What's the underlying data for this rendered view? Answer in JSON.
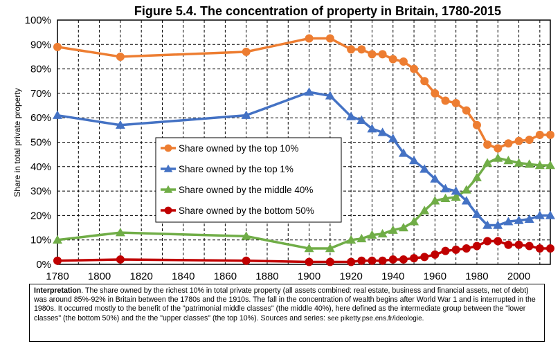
{
  "chart_data": {
    "type": "line",
    "title": "Figure 5.4. The concentration of property in Britain, 1780-2015",
    "xlabel": "",
    "ylabel": "Share in total private property",
    "xlim": [
      1780,
      2015
    ],
    "ylim": [
      0,
      100
    ],
    "x_ticks": [
      1780,
      1800,
      1820,
      1840,
      1860,
      1880,
      1900,
      1920,
      1940,
      1960,
      1980,
      2000
    ],
    "x_tick_labels": [
      "1780",
      "1800",
      "1820",
      "1840",
      "1860",
      "1880",
      "1900",
      "1920",
      "1940",
      "1960",
      "1980",
      "2000"
    ],
    "y_ticks": [
      0,
      10,
      20,
      30,
      40,
      50,
      60,
      70,
      80,
      90,
      100
    ],
    "y_tick_labels": [
      "0%",
      "10%",
      "20%",
      "30%",
      "40%",
      "50%",
      "60%",
      "70%",
      "80%",
      "90%",
      "100%"
    ],
    "grid": "dashed",
    "legend_position": "center-left",
    "series": [
      {
        "name": "Share owned by the top 10%",
        "color": "#ed7d31",
        "marker": "circle",
        "points": [
          [
            1780,
            89
          ],
          [
            1810,
            85
          ],
          [
            1870,
            87
          ],
          [
            1900,
            92.5
          ],
          [
            1910,
            92.5
          ],
          [
            1920,
            88
          ],
          [
            1925,
            88
          ],
          [
            1930,
            86
          ],
          [
            1935,
            86
          ],
          [
            1940,
            84
          ],
          [
            1945,
            83
          ],
          [
            1950,
            80
          ],
          [
            1955,
            75
          ],
          [
            1960,
            70
          ],
          [
            1965,
            67
          ],
          [
            1970,
            66
          ],
          [
            1975,
            63
          ],
          [
            1980,
            57
          ],
          [
            1985,
            49
          ],
          [
            1990,
            47.5
          ],
          [
            1995,
            49.5
          ],
          [
            2000,
            50.5
          ],
          [
            2005,
            51
          ],
          [
            2010,
            53
          ],
          [
            2015,
            53
          ]
        ]
      },
      {
        "name": "Share owned by the top 1%",
        "color": "#4472c4",
        "marker": "triangle",
        "points": [
          [
            1780,
            61
          ],
          [
            1810,
            57
          ],
          [
            1870,
            61
          ],
          [
            1900,
            70.5
          ],
          [
            1910,
            69
          ],
          [
            1920,
            60.5
          ],
          [
            1925,
            59
          ],
          [
            1930,
            55.5
          ],
          [
            1935,
            54
          ],
          [
            1940,
            51.5
          ],
          [
            1945,
            45.5
          ],
          [
            1950,
            42.5
          ],
          [
            1955,
            39
          ],
          [
            1960,
            35
          ],
          [
            1965,
            31
          ],
          [
            1970,
            30
          ],
          [
            1975,
            26
          ],
          [
            1980,
            20.5
          ],
          [
            1985,
            16
          ],
          [
            1990,
            16
          ],
          [
            1995,
            17.5
          ],
          [
            2000,
            18
          ],
          [
            2005,
            18.5
          ],
          [
            2010,
            20
          ],
          [
            2015,
            20
          ]
        ]
      },
      {
        "name": "Share owned by the middle 40%",
        "color": "#70ad47",
        "marker": "triangle",
        "points": [
          [
            1780,
            10
          ],
          [
            1810,
            13
          ],
          [
            1870,
            11.5
          ],
          [
            1900,
            6.5
          ],
          [
            1910,
            6.5
          ],
          [
            1920,
            10
          ],
          [
            1925,
            10.5
          ],
          [
            1930,
            12
          ],
          [
            1935,
            12.5
          ],
          [
            1940,
            14
          ],
          [
            1945,
            15
          ],
          [
            1950,
            17.5
          ],
          [
            1955,
            22
          ],
          [
            1960,
            26
          ],
          [
            1965,
            27
          ],
          [
            1970,
            27.5
          ],
          [
            1975,
            30.5
          ],
          [
            1980,
            35.5
          ],
          [
            1985,
            41.5
          ],
          [
            1990,
            43.5
          ],
          [
            1995,
            42.5
          ],
          [
            2000,
            41.5
          ],
          [
            2005,
            41
          ],
          [
            2010,
            40.5
          ],
          [
            2015,
            40.5
          ]
        ]
      },
      {
        "name": "Share owned by the bottom 50%",
        "color": "#c00000",
        "marker": "circle",
        "points": [
          [
            1780,
            1.5
          ],
          [
            1810,
            2
          ],
          [
            1870,
            1.5
          ],
          [
            1900,
            1
          ],
          [
            1910,
            1
          ],
          [
            1920,
            1
          ],
          [
            1925,
            1.5
          ],
          [
            1930,
            1.5
          ],
          [
            1935,
            1.5
          ],
          [
            1940,
            2
          ],
          [
            1945,
            2
          ],
          [
            1950,
            2.5
          ],
          [
            1955,
            3
          ],
          [
            1960,
            4
          ],
          [
            1965,
            5.5
          ],
          [
            1970,
            6
          ],
          [
            1975,
            6.5
          ],
          [
            1980,
            7.5
          ],
          [
            1985,
            9.5
          ],
          [
            1990,
            9.5
          ],
          [
            1995,
            8
          ],
          [
            2000,
            8
          ],
          [
            2005,
            7.5
          ],
          [
            2010,
            6.5
          ],
          [
            2015,
            6.5
          ]
        ]
      }
    ]
  },
  "note": {
    "lead": "Interpretation",
    "body": ". The share owned by the richest 10% in total private property (all assets combined: real estate, business and financial assets, net of debt) was around 85%-92% in Britain between the 1780s and the 1910s. The fall in the concentration of wealth begins after World War 1 and is interrupted in the 1980s. It occurred mostly to the benefit of the \"patrimonial middle classes\" (the middle 40%), here defined as the intermediate group between the \"lower classes\" (the bottom 50%) and the the \"upper classes\" (the top 10%). Sources and series: ",
    "source": "see piketty.pse.ens.fr/ideologie."
  }
}
